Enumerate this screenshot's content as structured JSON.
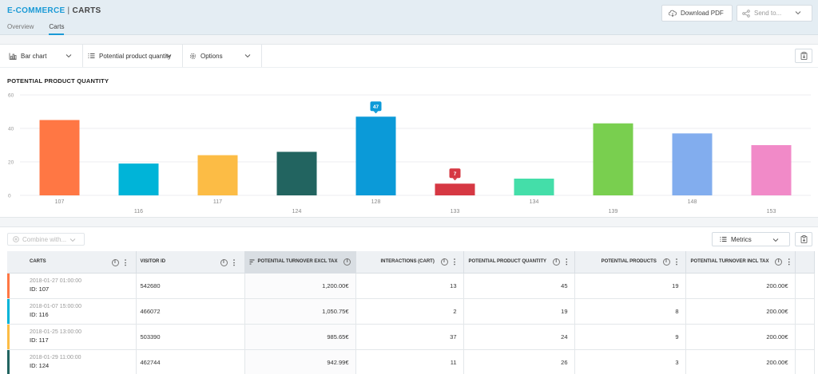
{
  "header": {
    "brand": "E-COMMERCE",
    "separator": "|",
    "page": "CARTS",
    "download_pdf": "Download PDF",
    "send_to": "Send to...",
    "tabs": [
      {
        "label": "Overview",
        "active": false
      },
      {
        "label": "Carts",
        "active": true
      }
    ],
    "accent_color": "#1a9ad6"
  },
  "toolbar": {
    "chart_type": "Bar chart",
    "metric": "Potential product quantity",
    "options": "Options"
  },
  "chart_data": {
    "type": "bar",
    "title": "POTENTIAL PRODUCT QUANTITY",
    "categories": [
      "107",
      "116",
      "117",
      "124",
      "128",
      "133",
      "134",
      "139",
      "148",
      "153"
    ],
    "values": [
      45,
      19,
      24,
      26,
      47,
      7,
      10,
      43,
      37,
      30
    ],
    "colors": [
      "#ff7744",
      "#00b4d8",
      "#fcbc45",
      "#226460",
      "#0b9ad8",
      "#d63843",
      "#44dea9",
      "#79cf4f",
      "#82adee",
      "#f18ac8"
    ],
    "ylim": [
      0,
      60
    ],
    "yticks": [
      0,
      20,
      40,
      60
    ],
    "highlighted": [
      {
        "category": "128",
        "label": "47",
        "color": "#0b9ad8"
      },
      {
        "category": "133",
        "label": "7",
        "color": "#d63843"
      }
    ],
    "grid": true,
    "xlabel": "",
    "ylabel": ""
  },
  "table": {
    "combine_placeholder": "Combine with...",
    "metrics_label": "Metrics",
    "columns": [
      "CARTS",
      "VISITOR ID",
      "POTENTIAL TURNOVER EXCL TAX",
      "INTERACTIONS (CART)",
      "POTENTIAL PRODUCT QUANTITY",
      "POTENTIAL PRODUCTS",
      "POTENTIAL TURNOVER INCL TAX"
    ],
    "rows": [
      {
        "date": "2018-01-27 01:00:00",
        "id": "ID: 107",
        "visitor": "542680",
        "turnover_excl": "1,200.00€",
        "interactions": "13",
        "quantity": "45",
        "products": "19",
        "turnover_incl": "200.00€",
        "color": "#ff7744"
      },
      {
        "date": "2018-01-07 15:00:00",
        "id": "ID: 116",
        "visitor": "466072",
        "turnover_excl": "1,050.75€",
        "interactions": "2",
        "quantity": "19",
        "products": "8",
        "turnover_incl": "200.00€",
        "color": "#00b4d8"
      },
      {
        "date": "2018-01-25 13:00:00",
        "id": "ID: 117",
        "visitor": "503390",
        "turnover_excl": "985.65€",
        "interactions": "37",
        "quantity": "24",
        "products": "9",
        "turnover_incl": "200.00€",
        "color": "#fcbc45"
      },
      {
        "date": "2018-01-29 11:00:00",
        "id": "ID: 124",
        "visitor": "462744",
        "turnover_excl": "942.99€",
        "interactions": "11",
        "quantity": "26",
        "products": "3",
        "turnover_incl": "200.00€",
        "color": "#226460"
      }
    ]
  }
}
